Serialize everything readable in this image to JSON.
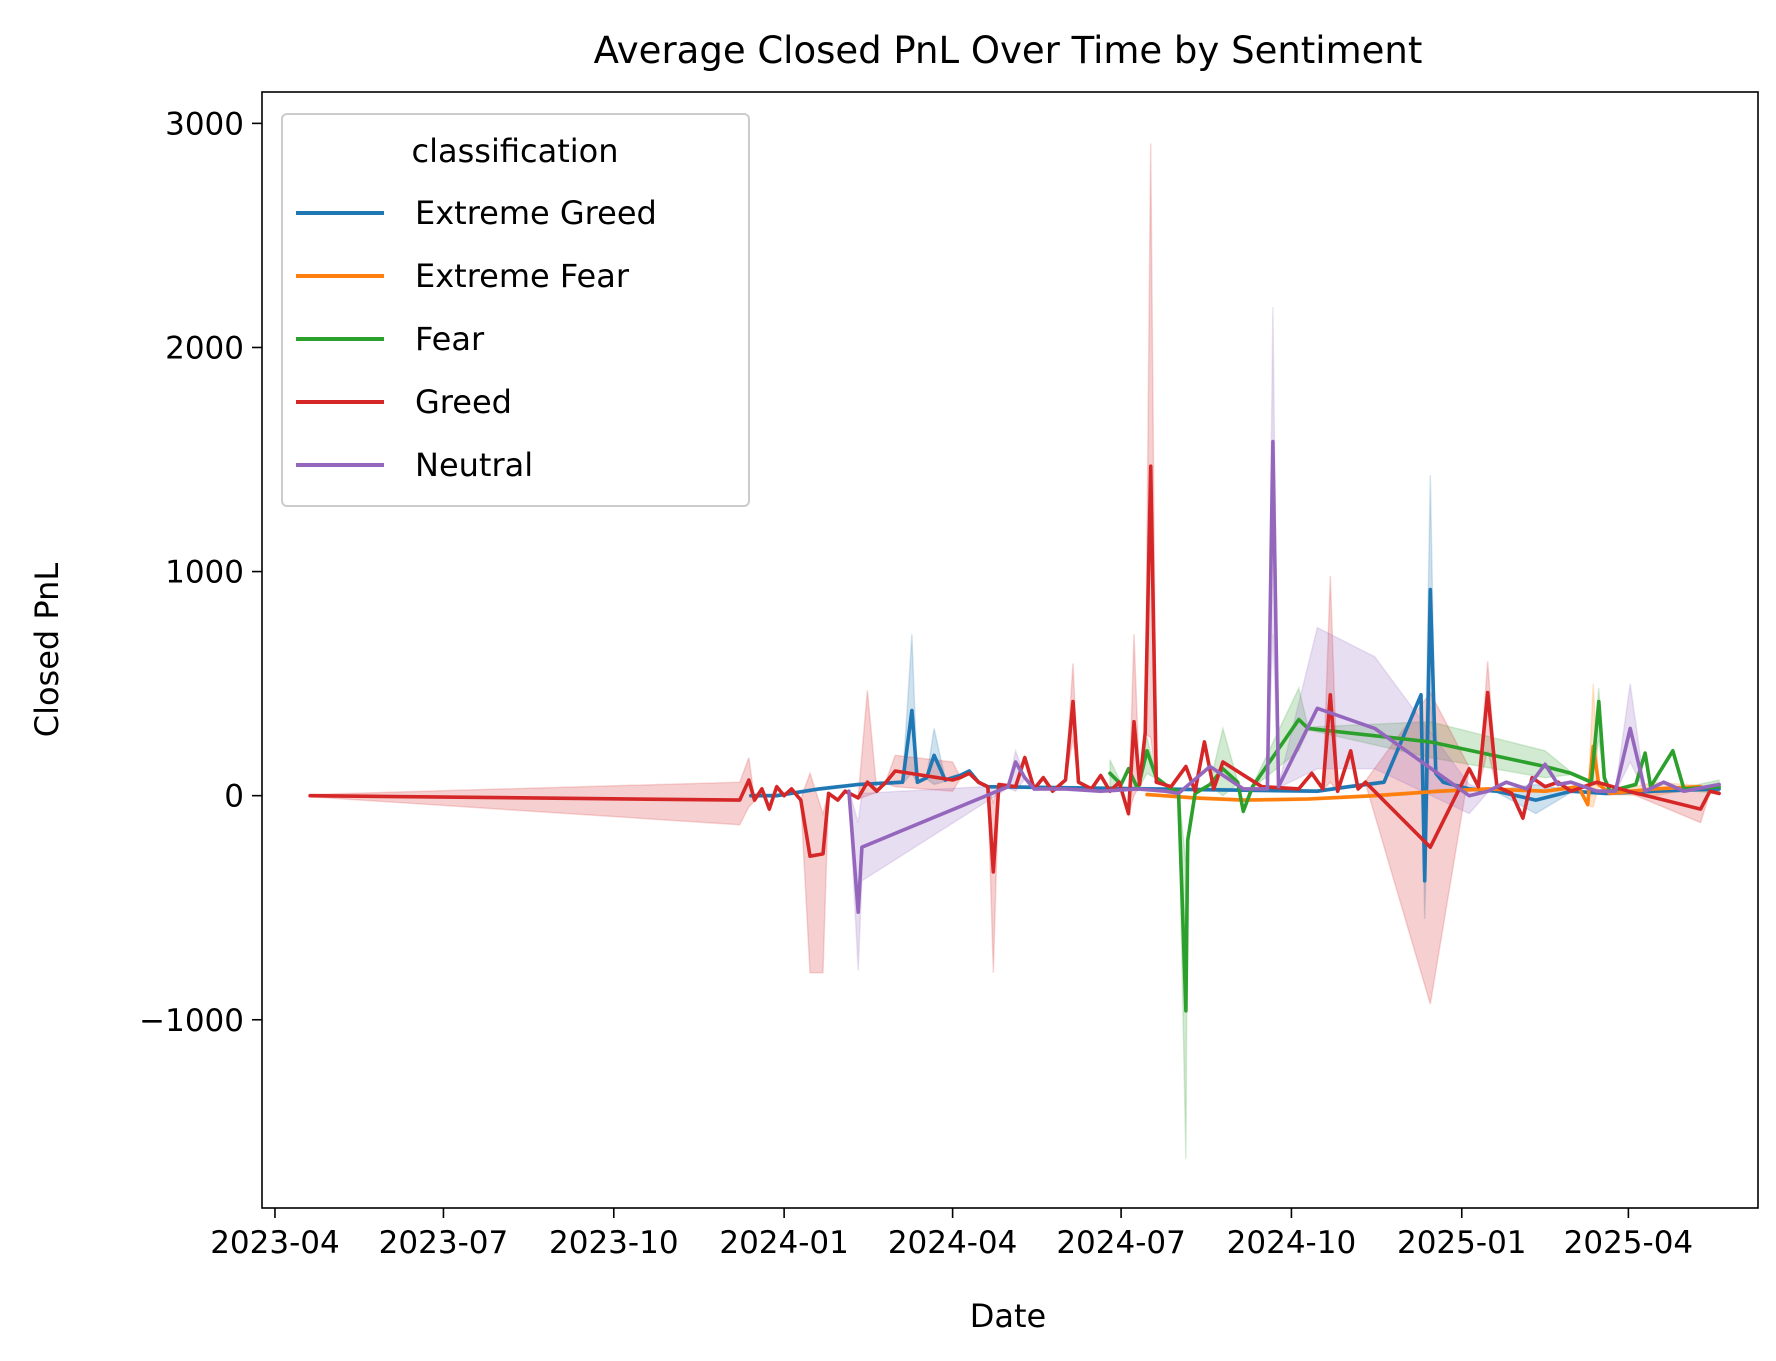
{
  "chart_data": {
    "type": "line",
    "title": "Average Closed PnL Over Time by Sentiment",
    "xlabel": "Date",
    "ylabel": "Closed PnL",
    "xlim": [
      "2023-03-25",
      "2025-06-10"
    ],
    "ylim": [
      -1840,
      3140
    ],
    "x_ticks": [
      "2023-04",
      "2023-07",
      "2023-10",
      "2024-01",
      "2024-04",
      "2024-07",
      "2024-10",
      "2025-01",
      "2025-04"
    ],
    "x_tick_dates": [
      "2023-04-01",
      "2023-07-01",
      "2023-10-01",
      "2024-01-01",
      "2024-04-01",
      "2024-07-01",
      "2024-10-01",
      "2025-01-01",
      "2025-04-01"
    ],
    "y_ticks": [
      -1000,
      0,
      1000,
      2000,
      3000
    ],
    "y_tick_labels": [
      "−1000",
      "0",
      "1000",
      "2000",
      "3000"
    ],
    "grid": false,
    "legend": {
      "title": "classification",
      "placement": "top-left"
    },
    "series": [
      {
        "name": "Extreme Greed",
        "color": "#1f77b4",
        "points": [
          [
            "2023-12-14",
            0
          ],
          [
            "2023-12-28",
            0
          ],
          [
            "2024-01-20",
            30
          ],
          [
            "2024-02-10",
            50
          ],
          [
            "2024-03-05",
            60
          ],
          [
            "2024-03-10",
            380
          ],
          [
            "2024-03-13",
            60
          ],
          [
            "2024-03-18",
            80
          ],
          [
            "2024-03-22",
            180
          ],
          [
            "2024-03-28",
            70
          ],
          [
            "2024-04-05",
            90
          ],
          [
            "2024-04-10",
            110
          ],
          [
            "2024-04-15",
            60
          ],
          [
            "2024-04-20",
            40
          ],
          [
            "2024-10-15",
            20
          ],
          [
            "2024-11-01",
            40
          ],
          [
            "2024-11-20",
            60
          ],
          [
            "2024-12-10",
            450
          ],
          [
            "2024-12-12",
            -380
          ],
          [
            "2024-12-15",
            920
          ],
          [
            "2024-12-18",
            100
          ],
          [
            "2024-12-22",
            60
          ],
          [
            "2025-01-05",
            30
          ],
          [
            "2025-01-20",
            20
          ],
          [
            "2025-02-10",
            -20
          ],
          [
            "2025-03-01",
            20
          ],
          [
            "2025-03-20",
            10
          ],
          [
            "2025-04-15",
            20
          ],
          [
            "2025-05-20",
            30
          ]
        ],
        "band": [
          [
            "2024-03-10",
            720,
            100
          ],
          [
            "2024-03-22",
            300,
            50
          ],
          [
            "2024-12-12",
            -20,
            -550
          ],
          [
            "2024-12-15",
            1430,
            400
          ],
          [
            "2025-02-10",
            50,
            -80
          ]
        ]
      },
      {
        "name": "Extreme Fear",
        "color": "#ff7f0e",
        "points": [
          [
            "2024-07-15",
            5
          ],
          [
            "2024-08-10",
            -10
          ],
          [
            "2024-09-05",
            -20
          ],
          [
            "2024-10-10",
            -15
          ],
          [
            "2024-11-15",
            0
          ],
          [
            "2024-12-20",
            20
          ],
          [
            "2025-01-15",
            30
          ],
          [
            "2025-02-15",
            20
          ],
          [
            "2025-03-05",
            40
          ],
          [
            "2025-03-10",
            -40
          ],
          [
            "2025-03-13",
            220
          ],
          [
            "2025-03-16",
            50
          ],
          [
            "2025-03-22",
            10
          ],
          [
            "2025-04-15",
            30
          ],
          [
            "2025-05-10",
            40
          ]
        ],
        "band": [
          [
            "2025-03-13",
            500,
            -50
          ],
          [
            "2025-04-15",
            60,
            0
          ]
        ]
      },
      {
        "name": "Fear",
        "color": "#2ca02c",
        "points": [
          [
            "2024-06-25",
            100
          ],
          [
            "2024-07-01",
            50
          ],
          [
            "2024-07-05",
            120
          ],
          [
            "2024-07-10",
            30
          ],
          [
            "2024-07-15",
            200
          ],
          [
            "2024-07-20",
            80
          ],
          [
            "2024-07-28",
            30
          ],
          [
            "2024-08-01",
            20
          ],
          [
            "2024-08-05",
            -960
          ],
          [
            "2024-08-06",
            -200
          ],
          [
            "2024-08-10",
            10
          ],
          [
            "2024-08-18",
            50
          ],
          [
            "2024-08-25",
            120
          ],
          [
            "2024-09-02",
            60
          ],
          [
            "2024-09-05",
            -70
          ],
          [
            "2024-09-10",
            40
          ],
          [
            "2024-10-05",
            340
          ],
          [
            "2024-10-10",
            300
          ],
          [
            "2024-12-15",
            240
          ],
          [
            "2025-02-15",
            130
          ],
          [
            "2025-03-01",
            100
          ],
          [
            "2025-03-12",
            60
          ],
          [
            "2025-03-16",
            420
          ],
          [
            "2025-03-19",
            80
          ],
          [
            "2025-03-22",
            20
          ],
          [
            "2025-04-05",
            50
          ],
          [
            "2025-04-10",
            190
          ],
          [
            "2025-04-13",
            40
          ],
          [
            "2025-04-25",
            200
          ],
          [
            "2025-05-01",
            30
          ],
          [
            "2025-05-20",
            40
          ]
        ],
        "band": [
          [
            "2024-06-25",
            160,
            40
          ],
          [
            "2024-07-15",
            260,
            100
          ],
          [
            "2024-08-05",
            -300,
            -1620
          ],
          [
            "2024-08-25",
            300,
            0
          ],
          [
            "2024-10-05",
            480,
            200
          ],
          [
            "2024-12-15",
            330,
            170
          ],
          [
            "2025-02-15",
            200,
            80
          ],
          [
            "2025-03-16",
            480,
            250
          ],
          [
            "2025-05-20",
            70,
            10
          ]
        ]
      },
      {
        "name": "Greed",
        "color": "#d62728",
        "points": [
          [
            "2023-04-20",
            0
          ],
          [
            "2023-12-08",
            -20
          ],
          [
            "2023-12-13",
            70
          ],
          [
            "2023-12-16",
            -20
          ],
          [
            "2023-12-20",
            30
          ],
          [
            "2023-12-24",
            -60
          ],
          [
            "2023-12-28",
            40
          ],
          [
            "2024-01-01",
            0
          ],
          [
            "2024-01-05",
            30
          ],
          [
            "2024-01-10",
            -20
          ],
          [
            "2024-01-15",
            -270
          ],
          [
            "2024-01-22",
            -260
          ],
          [
            "2024-01-25",
            10
          ],
          [
            "2024-01-30",
            -20
          ],
          [
            "2024-02-03",
            20
          ],
          [
            "2024-02-10",
            -10
          ],
          [
            "2024-02-15",
            60
          ],
          [
            "2024-02-20",
            20
          ],
          [
            "2024-02-25",
            60
          ],
          [
            "2024-03-01",
            110
          ],
          [
            "2024-04-01",
            70
          ],
          [
            "2024-04-05",
            80
          ],
          [
            "2024-04-10",
            100
          ],
          [
            "2024-04-15",
            60
          ],
          [
            "2024-04-20",
            40
          ],
          [
            "2024-04-23",
            -340
          ],
          [
            "2024-04-26",
            50
          ],
          [
            "2024-05-05",
            40
          ],
          [
            "2024-05-10",
            170
          ],
          [
            "2024-05-15",
            30
          ],
          [
            "2024-05-20",
            80
          ],
          [
            "2024-05-25",
            20
          ],
          [
            "2024-06-01",
            70
          ],
          [
            "2024-06-05",
            420
          ],
          [
            "2024-06-08",
            60
          ],
          [
            "2024-06-15",
            30
          ],
          [
            "2024-06-20",
            90
          ],
          [
            "2024-06-25",
            20
          ],
          [
            "2024-06-30",
            60
          ],
          [
            "2024-07-05",
            -80
          ],
          [
            "2024-07-08",
            330
          ],
          [
            "2024-07-11",
            50
          ],
          [
            "2024-07-14",
            280
          ],
          [
            "2024-07-17",
            1470
          ],
          [
            "2024-07-20",
            60
          ],
          [
            "2024-07-28",
            40
          ],
          [
            "2024-08-05",
            130
          ],
          [
            "2024-08-10",
            20
          ],
          [
            "2024-08-15",
            240
          ],
          [
            "2024-08-20",
            30
          ],
          [
            "2024-08-25",
            150
          ],
          [
            "2024-09-15",
            40
          ],
          [
            "2024-10-05",
            30
          ],
          [
            "2024-10-12",
            100
          ],
          [
            "2024-10-18",
            30
          ],
          [
            "2024-10-22",
            450
          ],
          [
            "2024-10-26",
            20
          ],
          [
            "2024-11-02",
            200
          ],
          [
            "2024-11-06",
            30
          ],
          [
            "2024-11-10",
            60
          ],
          [
            "2024-12-15",
            -230
          ],
          [
            "2025-01-05",
            120
          ],
          [
            "2025-01-10",
            40
          ],
          [
            "2025-01-15",
            460
          ],
          [
            "2025-01-20",
            40
          ],
          [
            "2025-01-28",
            10
          ],
          [
            "2025-02-03",
            -100
          ],
          [
            "2025-02-08",
            80
          ],
          [
            "2025-02-15",
            40
          ],
          [
            "2025-02-22",
            60
          ],
          [
            "2025-03-01",
            20
          ],
          [
            "2025-03-15",
            60
          ],
          [
            "2025-04-01",
            20
          ],
          [
            "2025-05-10",
            -60
          ],
          [
            "2025-05-15",
            20
          ],
          [
            "2025-05-20",
            10
          ]
        ],
        "band": [
          [
            "2023-04-20",
            5,
            -5
          ],
          [
            "2023-12-08",
            60,
            -130
          ],
          [
            "2023-12-13",
            170,
            -50
          ],
          [
            "2024-01-15",
            100,
            -790
          ],
          [
            "2024-01-22",
            -80,
            -790
          ],
          [
            "2024-02-15",
            470,
            0
          ],
          [
            "2024-03-01",
            180,
            40
          ],
          [
            "2024-04-01",
            150,
            20
          ],
          [
            "2024-04-23",
            -30,
            -790
          ],
          [
            "2024-06-05",
            590,
            250
          ],
          [
            "2024-07-08",
            720,
            0
          ],
          [
            "2024-07-17",
            2910,
            260
          ],
          [
            "2024-10-22",
            980,
            60
          ],
          [
            "2024-12-15",
            460,
            -930
          ],
          [
            "2025-01-15",
            600,
            200
          ],
          [
            "2025-05-10",
            40,
            -120
          ]
        ]
      },
      {
        "name": "Neutral",
        "color": "#9467bd",
        "points": [
          [
            "2024-02-05",
            20
          ],
          [
            "2024-02-10",
            -520
          ],
          [
            "2024-02-12",
            -230
          ],
          [
            "2024-05-01",
            40
          ],
          [
            "2024-05-05",
            150
          ],
          [
            "2024-05-10",
            80
          ],
          [
            "2024-05-15",
            30
          ],
          [
            "2024-06-01",
            30
          ],
          [
            "2024-06-20",
            20
          ],
          [
            "2024-07-10",
            30
          ],
          [
            "2024-07-25",
            20
          ],
          [
            "2024-08-01",
            10
          ],
          [
            "2024-08-18",
            130
          ],
          [
            "2024-09-05",
            30
          ],
          [
            "2024-09-18",
            30
          ],
          [
            "2024-09-21",
            1580
          ],
          [
            "2024-09-24",
            40
          ],
          [
            "2024-10-15",
            390
          ],
          [
            "2024-11-15",
            300
          ],
          [
            "2025-01-05",
            0
          ],
          [
            "2025-01-15",
            20
          ],
          [
            "2025-01-25",
            60
          ],
          [
            "2025-02-05",
            30
          ],
          [
            "2025-02-15",
            140
          ],
          [
            "2025-02-22",
            50
          ],
          [
            "2025-03-01",
            60
          ],
          [
            "2025-03-15",
            20
          ],
          [
            "2025-03-25",
            20
          ],
          [
            "2025-04-02",
            300
          ],
          [
            "2025-04-10",
            20
          ],
          [
            "2025-04-20",
            60
          ],
          [
            "2025-05-01",
            20
          ],
          [
            "2025-05-20",
            50
          ]
        ],
        "band": [
          [
            "2024-02-10",
            -120,
            -780
          ],
          [
            "2024-02-12",
            10,
            -380
          ],
          [
            "2024-05-05",
            200,
            20
          ],
          [
            "2024-09-21",
            2180,
            720
          ],
          [
            "2024-10-15",
            750,
            120
          ],
          [
            "2024-11-15",
            620,
            120
          ],
          [
            "2025-01-05",
            50,
            -80
          ],
          [
            "2025-04-02",
            500,
            150
          ]
        ]
      }
    ]
  }
}
